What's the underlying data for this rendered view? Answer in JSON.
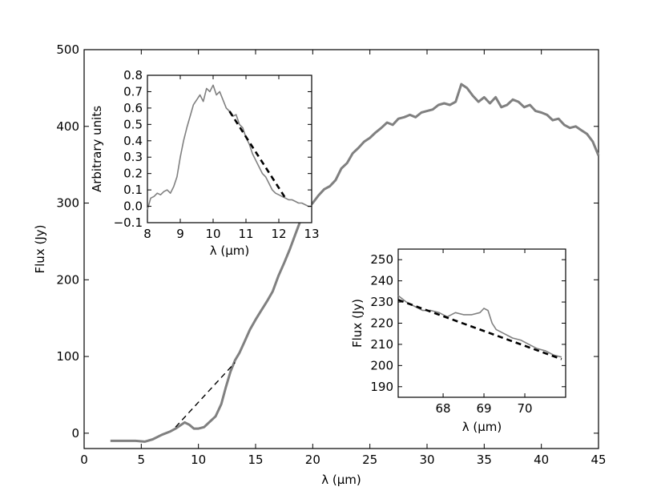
{
  "chart_data": [
    {
      "name": "main",
      "type": "line",
      "xlabel": "λ (μm)",
      "ylabel": "Flux (Jy)",
      "xlim": [
        0,
        45
      ],
      "ylim": [
        -20,
        500
      ],
      "xticks": [
        0,
        5,
        10,
        15,
        20,
        25,
        30,
        35,
        40,
        45
      ],
      "yticks": [
        0,
        100,
        200,
        300,
        400,
        500
      ],
      "series": [
        {
          "style": "solid",
          "color": "#808080",
          "x": [
            2.3,
            3.5,
            4.5,
            5.3,
            6.0,
            6.8,
            7.5,
            8.0,
            8.5,
            8.8,
            9.2,
            9.6,
            10.0,
            10.5,
            11.0,
            11.5,
            12.0,
            12.4,
            12.8,
            13.2,
            13.6,
            14.0,
            14.5,
            15.0,
            15.5,
            16.0,
            16.5,
            17.0,
            17.5,
            18.0,
            18.5,
            19.0,
            19.5,
            20.0,
            20.5,
            21.0,
            21.5,
            22.0,
            22.5,
            23.0,
            23.5,
            24.0,
            24.5,
            25.0,
            25.5,
            26.0,
            26.5,
            27.0,
            27.5,
            28.0,
            28.5,
            29.0,
            29.5,
            30.0,
            30.5,
            31.0,
            31.5,
            32.0,
            32.5,
            33.0,
            33.5,
            34.0,
            34.5,
            35.0,
            35.5,
            36.0,
            36.5,
            37.0,
            37.5,
            38.0,
            38.5,
            39.0,
            39.5,
            40.0,
            40.5,
            41.0,
            41.5,
            42.0,
            42.5,
            43.0,
            43.5,
            44.0,
            44.5,
            45.0
          ],
          "y": [
            -10,
            -10,
            -10,
            -11,
            -8,
            -2,
            2,
            6,
            11,
            14,
            11,
            6,
            6,
            8,
            15,
            22,
            38,
            60,
            80,
            95,
            105,
            118,
            135,
            148,
            160,
            172,
            185,
            205,
            222,
            240,
            260,
            280,
            293,
            300,
            310,
            318,
            322,
            330,
            345,
            352,
            365,
            372,
            380,
            385,
            392,
            398,
            405,
            402,
            410,
            412,
            415,
            412,
            418,
            420,
            422,
            428,
            430,
            428,
            432,
            455,
            450,
            440,
            432,
            438,
            430,
            438,
            425,
            428,
            435,
            432,
            425,
            428,
            420,
            418,
            415,
            408,
            410,
            402,
            398,
            400,
            395,
            390,
            380,
            362
          ]
        },
        {
          "style": "dashed",
          "color": "#000000",
          "x": [
            8.0,
            13.2
          ],
          "y": [
            8,
            92
          ]
        }
      ]
    },
    {
      "name": "inset-left",
      "type": "line",
      "xlabel": "λ (μm)",
      "ylabel": "Arbitrary units",
      "xlim": [
        8,
        13
      ],
      "ylim": [
        -0.1,
        0.8
      ],
      "xticks": [
        8,
        9,
        10,
        11,
        12,
        13
      ],
      "yticks": [
        -0.1,
        0.0,
        0.1,
        0.2,
        0.3,
        0.4,
        0.5,
        0.6,
        0.7,
        0.8
      ],
      "yticklabels": [
        "−0.1",
        "0.0",
        "0.1",
        "0.2",
        "0.3",
        "0.4",
        "0.5",
        "0.6",
        "0.7",
        "0.8"
      ],
      "series": [
        {
          "style": "solid",
          "color": "#808080",
          "x": [
            8.0,
            8.1,
            8.2,
            8.3,
            8.4,
            8.5,
            8.6,
            8.7,
            8.8,
            8.9,
            9.0,
            9.1,
            9.2,
            9.3,
            9.4,
            9.5,
            9.6,
            9.7,
            9.8,
            9.9,
            10.0,
            10.1,
            10.2,
            10.3,
            10.4,
            10.5,
            10.6,
            10.7,
            10.8,
            10.9,
            11.0,
            11.1,
            11.2,
            11.3,
            11.4,
            11.5,
            11.6,
            11.7,
            11.8,
            11.9,
            12.0,
            12.1,
            12.2,
            12.3,
            12.4,
            12.5,
            12.6,
            12.7,
            12.8,
            12.9,
            13.0
          ],
          "y": [
            -0.02,
            0.05,
            0.06,
            0.08,
            0.07,
            0.09,
            0.1,
            0.08,
            0.12,
            0.18,
            0.3,
            0.4,
            0.48,
            0.55,
            0.62,
            0.65,
            0.68,
            0.64,
            0.72,
            0.7,
            0.74,
            0.68,
            0.7,
            0.65,
            0.6,
            0.58,
            0.55,
            0.56,
            0.5,
            0.48,
            0.42,
            0.38,
            0.32,
            0.28,
            0.24,
            0.2,
            0.18,
            0.14,
            0.1,
            0.08,
            0.07,
            0.06,
            0.05,
            0.04,
            0.04,
            0.03,
            0.02,
            0.02,
            0.01,
            0.0,
            0.0
          ]
        },
        {
          "style": "dashed",
          "color": "#000000",
          "x": [
            10.5,
            12.2
          ],
          "y": [
            0.58,
            0.05
          ]
        }
      ]
    },
    {
      "name": "inset-right",
      "type": "line",
      "xlabel": "λ (μm)",
      "ylabel": "Flux (Jy)",
      "xlim": [
        66.9,
        71.0
      ],
      "ylim": [
        185,
        255
      ],
      "xticks": [
        68,
        69,
        70
      ],
      "yticks": [
        190,
        200,
        210,
        220,
        230,
        240,
        250
      ],
      "series": [
        {
          "style": "solid",
          "color": "#808080",
          "x": [
            66.9,
            67.1,
            67.3,
            67.5,
            67.7,
            67.9,
            68.1,
            68.3,
            68.5,
            68.7,
            68.9,
            69.0,
            69.1,
            69.2,
            69.3,
            69.5,
            69.7,
            69.9,
            70.1,
            70.3,
            70.5,
            70.7,
            70.9
          ],
          "y": [
            233,
            230,
            228,
            226,
            226,
            225,
            223,
            225,
            224,
            224,
            225,
            227,
            226,
            220,
            217,
            215,
            213,
            212,
            210,
            208,
            207,
            205,
            204
          ]
        },
        {
          "style": "dashed",
          "color": "#000000",
          "x": [
            66.9,
            70.9
          ],
          "y": [
            231,
            203
          ]
        }
      ]
    }
  ]
}
